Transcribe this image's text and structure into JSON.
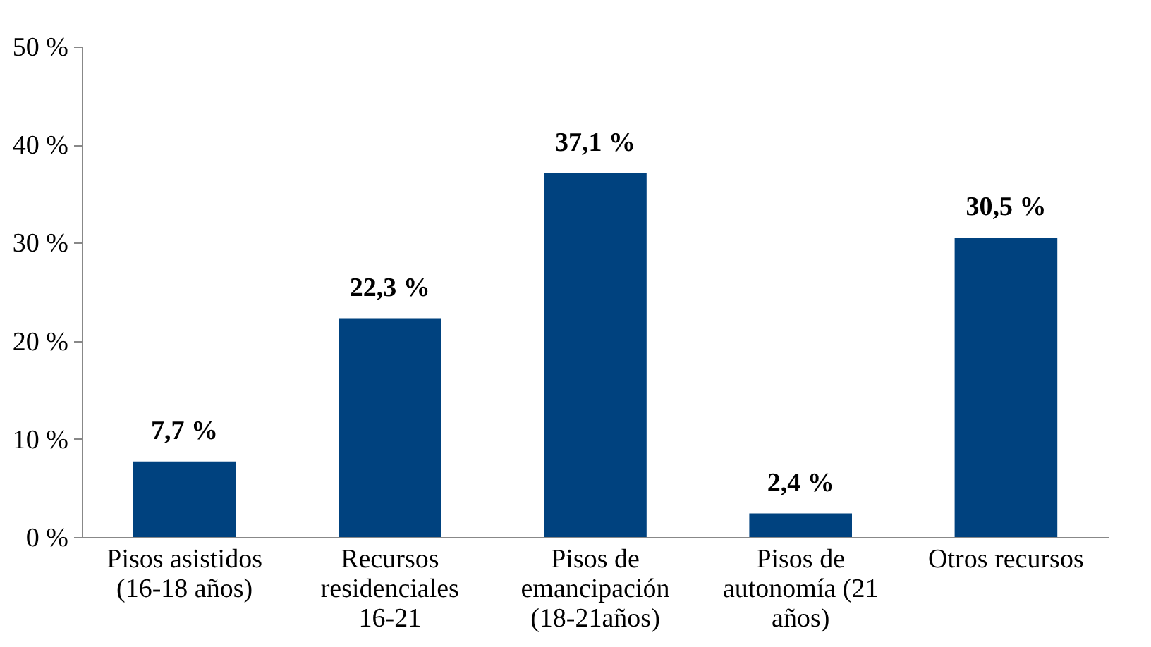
{
  "chart_data": {
    "type": "bar",
    "categories": [
      "Pisos asistidos (16-18 años)",
      "Recursos residenciales 16-21",
      "Pisos de emancipación (18-21años)",
      "Pisos de autonomía (21 años)",
      "Otros recursos"
    ],
    "values": [
      7.7,
      22.3,
      37.1,
      2.4,
      30.5
    ],
    "value_labels": [
      "7,7 %",
      "22,3 %",
      "37,1 %",
      "2,4 %",
      "30,5 %"
    ],
    "color": "#00427f",
    "ylim": [
      0,
      50
    ],
    "yticks": [
      {
        "value": 0,
        "label": "0 %"
      },
      {
        "value": 10,
        "label": "10 %"
      },
      {
        "value": 20,
        "label": "20 %"
      },
      {
        "value": 30,
        "label": "30 %"
      },
      {
        "value": 40,
        "label": "40 %"
      },
      {
        "value": 50,
        "label": "50 %"
      }
    ],
    "grid": false
  }
}
